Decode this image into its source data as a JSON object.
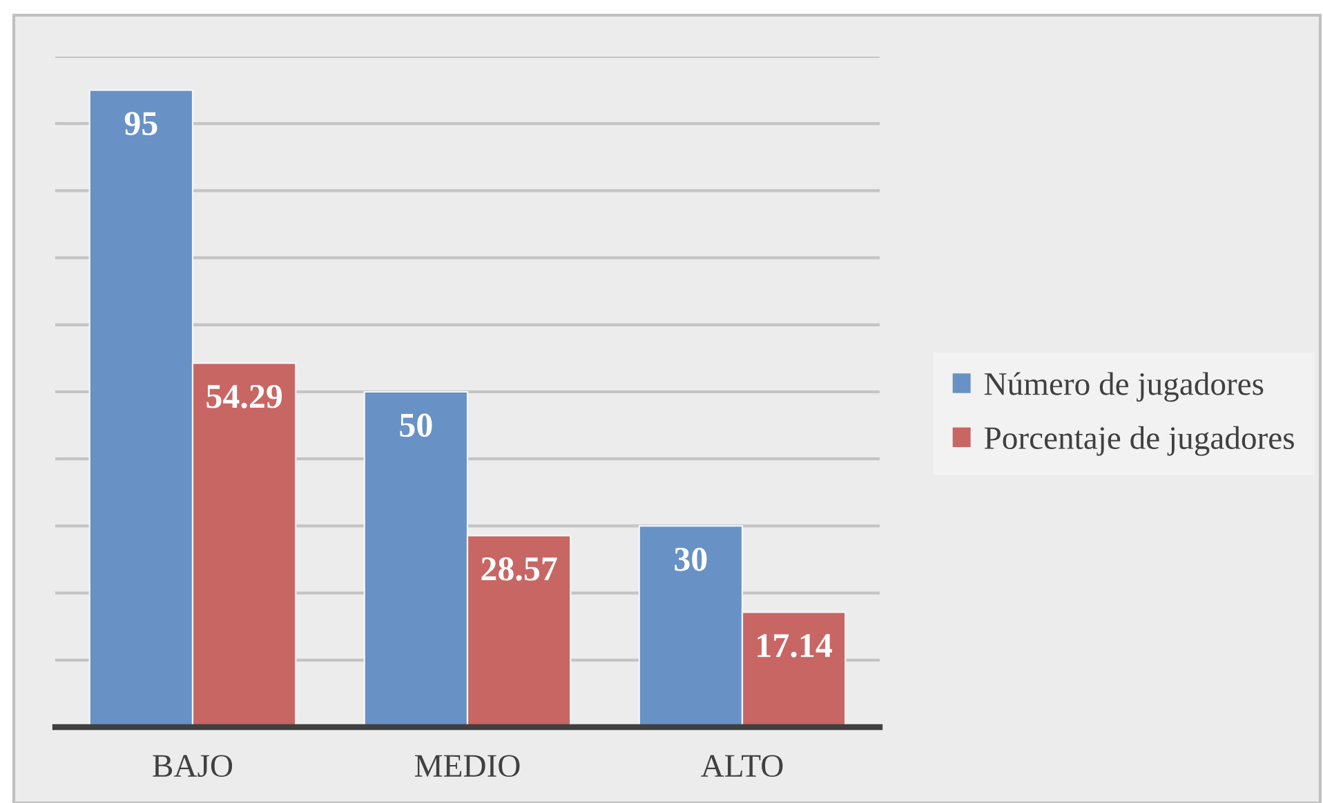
{
  "chart_data": {
    "type": "bar",
    "categories": [
      "BAJO",
      "MEDIO",
      "ALTO"
    ],
    "series": [
      {
        "name": "Número de jugadores",
        "color": "#6891c6",
        "values": [
          95,
          50,
          30
        ]
      },
      {
        "name": "Porcentaje de jugadores",
        "color": "#c86664",
        "values": [
          54.29,
          28.57,
          17.14
        ]
      }
    ],
    "ylim": [
      0,
      100
    ],
    "yticks": [
      {
        "value": 0,
        "label": null
      },
      {
        "value": 10,
        "label": null
      },
      {
        "value": 20,
        "label": null
      },
      {
        "value": 30,
        "label": null
      },
      {
        "value": 40,
        "label": null
      },
      {
        "value": 50,
        "label": null
      },
      {
        "value": 60,
        "label": null
      },
      {
        "value": 70,
        "label": null
      },
      {
        "value": 80,
        "label": null
      },
      {
        "value": 90,
        "label": null
      },
      {
        "value": 100,
        "label": null
      }
    ],
    "tick_labels": "x",
    "grid": "y",
    "legend": "right",
    "data_labels": true
  }
}
